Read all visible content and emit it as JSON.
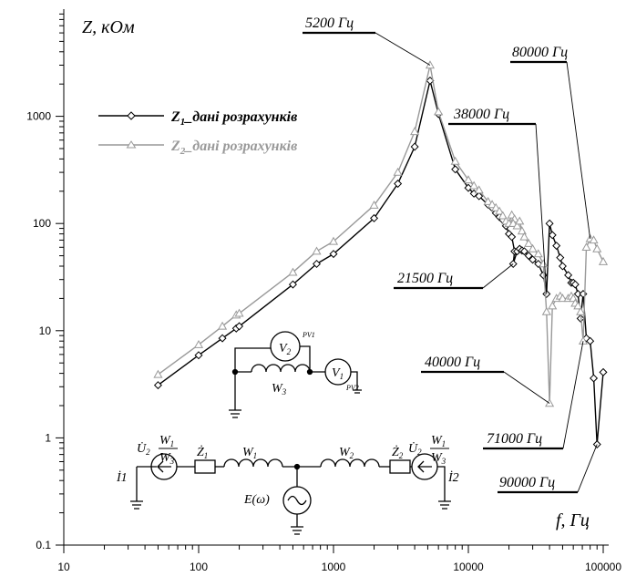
{
  "chart_data": {
    "type": "line",
    "xlabel": "f, Гц",
    "ylabel": "Z, кОм",
    "x_scale": "log",
    "y_scale": "log",
    "xlim": [
      10,
      100000
    ],
    "ylim": [
      0.1,
      10000
    ],
    "x_ticks": [
      "10",
      "100",
      "1000",
      "10000",
      "100000"
    ],
    "y_ticks": [
      "0.1",
      "1",
      "10",
      "100",
      "1000"
    ],
    "grid": false,
    "legend_position": "top-left",
    "series": [
      {
        "name": "Z1_дані розрахунків",
        "name_main": "Z",
        "name_sub": "1",
        "name_rest": "_дані розрахунків",
        "color": "#000000",
        "marker": "diamond",
        "points": [
          [
            50,
            3.1
          ],
          [
            100,
            5.9
          ],
          [
            150,
            8.5
          ],
          [
            190,
            10.5
          ],
          [
            200,
            11
          ],
          [
            500,
            27
          ],
          [
            750,
            42
          ],
          [
            1000,
            52
          ],
          [
            2000,
            112
          ],
          [
            3000,
            235
          ],
          [
            4000,
            520
          ],
          [
            5200,
            2150
          ],
          [
            6000,
            1050
          ],
          [
            8000,
            320
          ],
          [
            10000,
            215
          ],
          [
            11000,
            190
          ],
          [
            12000,
            180
          ],
          [
            14000,
            150
          ],
          [
            15000,
            140
          ],
          [
            16000,
            125
          ],
          [
            17000,
            115
          ],
          [
            18000,
            108
          ],
          [
            19000,
            95
          ],
          [
            20000,
            80
          ],
          [
            21000,
            75
          ],
          [
            22000,
            55
          ],
          [
            21500,
            42
          ],
          [
            23000,
            55
          ],
          [
            24000,
            58
          ],
          [
            25000,
            56
          ],
          [
            26000,
            55
          ],
          [
            28000,
            50
          ],
          [
            30000,
            46
          ],
          [
            33000,
            42
          ],
          [
            36000,
            33
          ],
          [
            38000,
            22
          ],
          [
            40000,
            100
          ],
          [
            42000,
            78
          ],
          [
            45000,
            62
          ],
          [
            48000,
            48
          ],
          [
            50000,
            40
          ],
          [
            55000,
            33
          ],
          [
            58000,
            28
          ],
          [
            60000,
            28
          ],
          [
            62000,
            27
          ],
          [
            65000,
            22
          ],
          [
            68000,
            13
          ],
          [
            71000,
            22
          ],
          [
            75000,
            8.5
          ],
          [
            80000,
            8
          ],
          [
            85000,
            3.6
          ],
          [
            90000,
            0.87
          ],
          [
            100000,
            4.1
          ]
        ]
      },
      {
        "name": "Z2_дані розрахунків",
        "name_main": "Z",
        "name_sub": "2",
        "name_rest": "_дані розрахунків",
        "color": "#999999",
        "marker": "triangle",
        "points": [
          [
            50,
            3.9
          ],
          [
            100,
            7.4
          ],
          [
            150,
            11
          ],
          [
            190,
            14
          ],
          [
            200,
            14.5
          ],
          [
            500,
            35
          ],
          [
            750,
            55
          ],
          [
            1000,
            68
          ],
          [
            2000,
            148
          ],
          [
            3000,
            300
          ],
          [
            4000,
            720
          ],
          [
            5200,
            3000
          ],
          [
            6000,
            1100
          ],
          [
            8000,
            380
          ],
          [
            10000,
            255
          ],
          [
            11000,
            225
          ],
          [
            12000,
            205
          ],
          [
            14000,
            160
          ],
          [
            15000,
            150
          ],
          [
            16000,
            140
          ],
          [
            17000,
            130
          ],
          [
            18000,
            118
          ],
          [
            19000,
            105
          ],
          [
            20000,
            100
          ],
          [
            21000,
            120
          ],
          [
            22000,
            110
          ],
          [
            21500,
            100
          ],
          [
            23000,
            95
          ],
          [
            24000,
            105
          ],
          [
            25000,
            85
          ],
          [
            26000,
            75
          ],
          [
            28000,
            65
          ],
          [
            30000,
            58
          ],
          [
            33000,
            52
          ],
          [
            36000,
            42
          ],
          [
            38000,
            15
          ],
          [
            40000,
            2.1
          ],
          [
            42000,
            17
          ],
          [
            45000,
            20
          ],
          [
            48000,
            21
          ],
          [
            50000,
            20
          ],
          [
            55000,
            20
          ],
          [
            58000,
            21
          ],
          [
            60000,
            20
          ],
          [
            62000,
            18
          ],
          [
            65000,
            17
          ],
          [
            68000,
            15
          ],
          [
            71000,
            8
          ],
          [
            75000,
            60
          ],
          [
            80000,
            72
          ],
          [
            85000,
            70
          ],
          [
            90000,
            58
          ],
          [
            100000,
            44
          ]
        ]
      }
    ],
    "annotations": [
      {
        "text": "5200 Гц",
        "x": 5200,
        "y": 3000,
        "series": 1
      },
      {
        "text": "80000 Гц",
        "x": 80000,
        "y": 72,
        "series": 1
      },
      {
        "text": "38000 Гц",
        "x": 38000,
        "y": 22,
        "series": 0
      },
      {
        "text": "21500 Гц",
        "x": 21500,
        "y": 42,
        "series": 0
      },
      {
        "text": "40000 Гц",
        "x": 40000,
        "y": 2.1,
        "series": 1
      },
      {
        "text": "71000 Гц",
        "x": 71000,
        "y": 8,
        "series": 1
      },
      {
        "text": "90000 Гц",
        "x": 90000,
        "y": 0.87,
        "series": 0
      }
    ]
  },
  "schematic": {
    "voltmeter_2": "V",
    "voltmeter_2_sub": "2",
    "voltmeter_2_tag": "PV1",
    "voltmeter_1": "V",
    "voltmeter_1_sub": "1",
    "voltmeter_1_tag": "PV2",
    "winding_3": "W",
    "winding_3_sub": "3",
    "winding_1": "W",
    "winding_1_sub": "1",
    "winding_2": "W",
    "winding_2_sub": "2",
    "impedance_1": "Ż",
    "impedance_1_sub": "1",
    "impedance_2": "Ż",
    "impedance_2_sub": "2",
    "source_left": "U̇",
    "source_left_sub": "2",
    "source_right": "U̇",
    "source_right_sub": "2",
    "ratio_num": "W",
    "ratio_num_sub": "1",
    "ratio_den": "W",
    "ratio_den_sub": "3",
    "current_1": "İ1",
    "current_2": "İ2",
    "emf": "E(ω)"
  }
}
